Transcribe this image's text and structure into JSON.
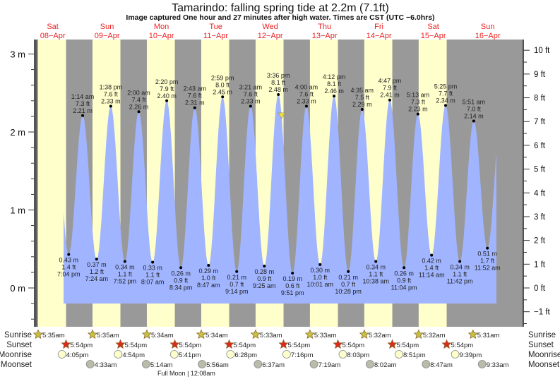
{
  "title": "Tamarindo: falling  spring tide at 2.2m (7.1ft)",
  "subtitle": "Image captured One hour and 27 minutes after high water. Times are CST (UTC −6.0hrs)",
  "colors": {
    "day": "#ffffcc",
    "night": "#999999",
    "water": "#a0b4ff",
    "day_label": "#ee2222",
    "sunrise_icon": "#c8c040",
    "sunset_icon": "#dd2a1a",
    "moonrise_icon": "#ffffcc",
    "moonset_icon": "#bbbbaa",
    "now_marker": "#f0e040"
  },
  "chart_data": {
    "type": "line",
    "title": "Tamarindo: falling  spring tide at 2.2m (7.1ft)",
    "left_axis": {
      "unit": "m",
      "ticks": [
        "3 m",
        "2 m",
        "1 m",
        "0 m"
      ],
      "tick_values": [
        3,
        2,
        1,
        0
      ]
    },
    "right_axis": {
      "unit": "ft",
      "ticks": [
        "10 ft",
        "9 ft",
        "8 ft",
        "7 ft",
        "6 ft",
        "5 ft",
        "4 ft",
        "3 ft",
        "2 ft",
        "1 ft",
        "0 ft",
        "−1 ft"
      ],
      "tick_values": [
        10,
        9,
        8,
        7,
        6,
        5,
        4,
        3,
        2,
        1,
        0,
        -1
      ]
    },
    "ylim_m": [
      -0.6,
      3.2
    ],
    "current": {
      "datetime": "2023-04-12T17:03",
      "height_m": 2.2,
      "height_ft": 7.1,
      "state": "falling"
    },
    "days": [
      {
        "dow": "Sat",
        "date": "08−Apr",
        "sunrise": "5:35am",
        "sunset": "5:54pm",
        "moonrise": "4:05pm",
        "moonset": ""
      },
      {
        "dow": "Sun",
        "date": "09−Apr",
        "sunrise": "5:35am",
        "sunset": "5:54pm",
        "moonrise": "4:54pm",
        "moonset": "4:33am"
      },
      {
        "dow": "Mon",
        "date": "10−Apr",
        "sunrise": "5:34am",
        "sunset": "5:54pm",
        "moonrise": "5:41pm",
        "moonset": "5:14am"
      },
      {
        "dow": "Tue",
        "date": "11−Apr",
        "sunrise": "5:34am",
        "sunset": "5:54pm",
        "moonrise": "6:28pm",
        "moonset": "5:56am"
      },
      {
        "dow": "Wed",
        "date": "12−Apr",
        "sunrise": "5:33am",
        "sunset": "5:54pm",
        "moonrise": "7:16pm",
        "moonset": "6:37am"
      },
      {
        "dow": "Thu",
        "date": "13−Apr",
        "sunrise": "5:33am",
        "sunset": "5:54pm",
        "moonrise": "8:03pm",
        "moonset": "7:19am"
      },
      {
        "dow": "Fri",
        "date": "14−Apr",
        "sunrise": "5:32am",
        "sunset": "5:54pm",
        "moonrise": "8:51pm",
        "moonset": "8:02am"
      },
      {
        "dow": "Sat",
        "date": "15−Apr",
        "sunrise": "5:32am",
        "sunset": "5:54pm",
        "moonrise": "9:39pm",
        "moonset": "8:47am"
      },
      {
        "dow": "Sun",
        "date": "16−Apr",
        "sunrise": "5:31am",
        "sunset": "",
        "moonrise": "",
        "moonset": "9:33am"
      }
    ],
    "extremes": [
      {
        "day": 0,
        "time": "7:04 pm",
        "type": "low",
        "m": "0.43 m",
        "ft": "1.4 ft",
        "value": 0.43
      },
      {
        "day": 1,
        "time": "1:14 am",
        "type": "high",
        "m": "2.21 m",
        "ft": "7.3 ft",
        "value": 2.21
      },
      {
        "day": 1,
        "time": "7:24 am",
        "type": "low",
        "m": "0.37 m",
        "ft": "1.2 ft",
        "value": 0.37
      },
      {
        "day": 1,
        "time": "1:38 pm",
        "type": "high",
        "m": "2.33 m",
        "ft": "7.6 ft",
        "value": 2.33
      },
      {
        "day": 1,
        "time": "7:52 pm",
        "type": "low",
        "m": "0.34 m",
        "ft": "1.1 ft",
        "value": 0.34
      },
      {
        "day": 2,
        "time": "2:00 am",
        "type": "high",
        "m": "2.26 m",
        "ft": "7.4 ft",
        "value": 2.26
      },
      {
        "day": 2,
        "time": "8:07 am",
        "type": "low",
        "m": "0.33 m",
        "ft": "1.1 ft",
        "value": 0.33
      },
      {
        "day": 2,
        "time": "2:20 pm",
        "type": "high",
        "m": "2.40 m",
        "ft": "7.9 ft",
        "value": 2.4
      },
      {
        "day": 2,
        "time": "8:34 pm",
        "type": "low",
        "m": "0.26 m",
        "ft": "0.9 ft",
        "value": 0.26
      },
      {
        "day": 3,
        "time": "2:43 am",
        "type": "high",
        "m": "2.31 m",
        "ft": "7.6 ft",
        "value": 2.31
      },
      {
        "day": 3,
        "time": "8:47 am",
        "type": "low",
        "m": "0.29 m",
        "ft": "1.0 ft",
        "value": 0.29
      },
      {
        "day": 3,
        "time": "2:59 pm",
        "type": "high",
        "m": "2.45 m",
        "ft": "8.0 ft",
        "value": 2.45
      },
      {
        "day": 3,
        "time": "9:14 pm",
        "type": "low",
        "m": "0.21 m",
        "ft": "0.7 ft",
        "value": 0.21
      },
      {
        "day": 4,
        "time": "3:21 am",
        "type": "high",
        "m": "2.33 m",
        "ft": "7.6 ft",
        "value": 2.33
      },
      {
        "day": 4,
        "time": "9:25 am",
        "type": "low",
        "m": "0.28 m",
        "ft": "0.9 ft",
        "value": 0.28
      },
      {
        "day": 4,
        "time": "3:36 pm",
        "type": "high",
        "m": "2.48 m",
        "ft": "8.1 ft",
        "value": 2.48
      },
      {
        "day": 4,
        "time": "9:51 pm",
        "type": "low",
        "m": "0.19 m",
        "ft": "0.6 ft",
        "value": 0.19
      },
      {
        "day": 5,
        "time": "4:00 am",
        "type": "high",
        "m": "2.33 m",
        "ft": "7.6 ft",
        "value": 2.33
      },
      {
        "day": 5,
        "time": "10:01 am",
        "type": "low",
        "m": "0.30 m",
        "ft": "1.0 ft",
        "value": 0.3
      },
      {
        "day": 5,
        "time": "4:12 pm",
        "type": "high",
        "m": "2.46 m",
        "ft": "8.1 ft",
        "value": 2.46
      },
      {
        "day": 5,
        "time": "10:28 pm",
        "type": "low",
        "m": "0.21 m",
        "ft": "0.7 ft",
        "value": 0.21
      },
      {
        "day": 6,
        "time": "4:35 am",
        "type": "high",
        "m": "2.29 m",
        "ft": "7.5 ft",
        "value": 2.29
      },
      {
        "day": 6,
        "time": "10:38 am",
        "type": "low",
        "m": "0.34 m",
        "ft": "1.1 ft",
        "value": 0.34
      },
      {
        "day": 6,
        "time": "4:47 pm",
        "type": "high",
        "m": "2.41 m",
        "ft": "7.9 ft",
        "value": 2.41
      },
      {
        "day": 6,
        "time": "11:04 pm",
        "type": "low",
        "m": "0.26 m",
        "ft": "0.9 ft",
        "value": 0.26
      },
      {
        "day": 7,
        "time": "5:13 am",
        "type": "high",
        "m": "2.23 m",
        "ft": "7.3 ft",
        "value": 2.23
      },
      {
        "day": 7,
        "time": "11:14 am",
        "type": "low",
        "m": "0.42 m",
        "ft": "1.4 ft",
        "value": 0.42
      },
      {
        "day": 7,
        "time": "5:25 pm",
        "type": "high",
        "m": "2.34 m",
        "ft": "7.7 ft",
        "value": 2.34
      },
      {
        "day": 7,
        "time": "11:42 pm",
        "type": "low",
        "m": "0.34 m",
        "ft": "1.1 ft",
        "value": 0.34
      },
      {
        "day": 8,
        "time": "5:51 am",
        "type": "high",
        "m": "2.14 m",
        "ft": "7.0 ft",
        "value": 2.14
      },
      {
        "day": 8,
        "time": "11:52 am",
        "type": "low",
        "m": "0.51 m",
        "ft": "1.7 ft",
        "value": 0.51
      }
    ]
  },
  "rows": {
    "sunrise": "Sunrise",
    "sunset": "Sunset",
    "moonrise": "Moonrise",
    "moonset": "Moonset"
  },
  "moon_phase": "Full Moon | 12:08am"
}
